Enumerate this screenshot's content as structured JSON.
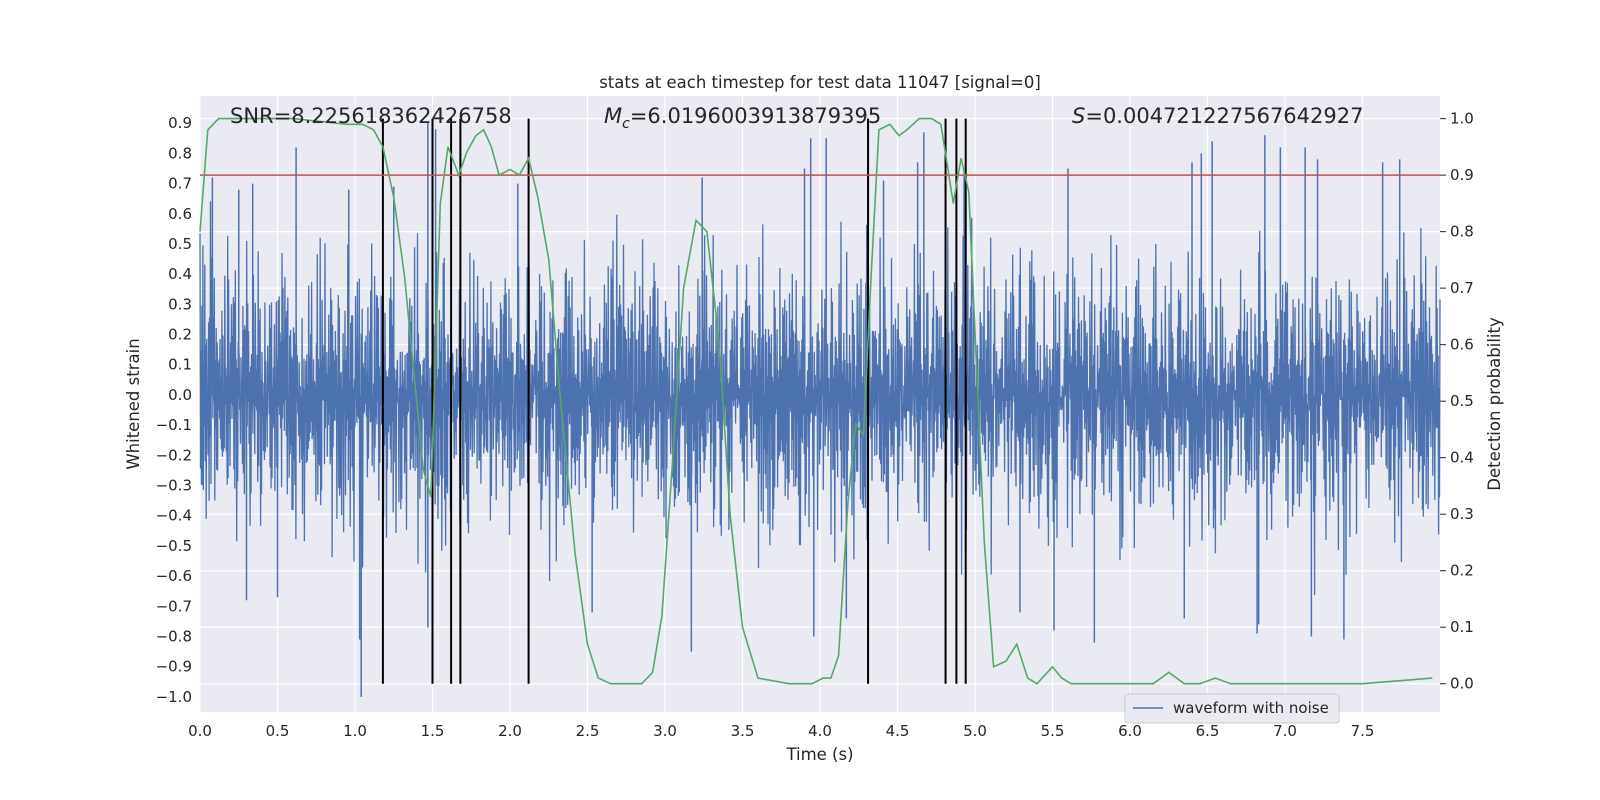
{
  "chart_data": {
    "type": "line",
    "title": "stats at each timestep for test data 11047 [signal=0]",
    "xlabel": "Time (s)",
    "ylabel": "Whitened strain",
    "y2label": "Detection probability",
    "xlim": [
      0,
      8
    ],
    "ylim": [
      -1.05,
      0.99
    ],
    "y2lim": [
      -0.05,
      1.04
    ],
    "x_ticks": [
      0.0,
      0.5,
      1.0,
      1.5,
      2.0,
      2.5,
      3.0,
      3.5,
      4.0,
      4.5,
      5.0,
      5.5,
      6.0,
      6.5,
      7.0,
      7.5
    ],
    "x_tick_labels": [
      "0.0",
      "0.5",
      "1.0",
      "1.5",
      "2.0",
      "2.5",
      "3.0",
      "3.5",
      "4.0",
      "4.5",
      "5.0",
      "5.5",
      "6.0",
      "6.5",
      "7.0",
      "7.5"
    ],
    "y_ticks": [
      0.9,
      0.8,
      0.7,
      0.6,
      0.5,
      0.4,
      0.3,
      0.2,
      0.1,
      0.0,
      -0.1,
      -0.2,
      -0.3,
      -0.4,
      -0.5,
      -0.6,
      -0.7,
      -0.8,
      -0.9,
      -1.0
    ],
    "y_tick_labels": [
      "0.9",
      "0.8",
      "0.7",
      "0.6",
      "0.5",
      "0.4",
      "0.3",
      "0.2",
      "0.1",
      "0.0",
      "−0.1",
      "−0.2",
      "−0.3",
      "−0.4",
      "−0.5",
      "−0.6",
      "−0.7",
      "−0.8",
      "−0.9",
      "−1.0"
    ],
    "y2_ticks": [
      1.0,
      0.9,
      0.8,
      0.7,
      0.6,
      0.5,
      0.4,
      0.3,
      0.2,
      0.1,
      0.0
    ],
    "y2_tick_labels": [
      "1.0",
      "0.9",
      "0.8",
      "0.7",
      "0.6",
      "0.5",
      "0.4",
      "0.3",
      "0.2",
      "0.1",
      "0.0"
    ],
    "annotations": {
      "snr": "SNR=8.225618362426758",
      "mc_symbol": "M",
      "mc_sub": "c",
      "mc_value": "=6.0196003913879395",
      "s_symbol": "S",
      "s_value": "=0.004721227567642927"
    },
    "threshold": {
      "value": 0.9,
      "axis": "y2",
      "color": "#c44e52"
    },
    "vlines": [
      1.18,
      1.5,
      1.62,
      1.68,
      2.12,
      4.31,
      4.81,
      4.88,
      4.94
    ],
    "series": [
      {
        "name": "waveform with noise",
        "axis": "y",
        "color": "#4c72b0",
        "envelope_note": "dense whitened-strain noise, approx symmetric about 0, core amplitude ~0.35 with spikes",
        "spikes": [
          {
            "x": 0.08,
            "y": 0.72
          },
          {
            "x": 0.25,
            "y": 0.68
          },
          {
            "x": 0.34,
            "y": 0.7
          },
          {
            "x": 0.62,
            "y": 0.82
          },
          {
            "x": 0.96,
            "y": 0.68
          },
          {
            "x": 1.25,
            "y": 0.69
          },
          {
            "x": 1.47,
            "y": 0.9
          },
          {
            "x": 1.52,
            "y": 0.88
          },
          {
            "x": 2.05,
            "y": 0.7
          },
          {
            "x": 3.24,
            "y": 0.72
          },
          {
            "x": 3.9,
            "y": 0.75
          },
          {
            "x": 3.94,
            "y": 0.85
          },
          {
            "x": 4.04,
            "y": 0.85
          },
          {
            "x": 4.41,
            "y": 0.71
          },
          {
            "x": 4.63,
            "y": 0.77
          },
          {
            "x": 4.67,
            "y": 0.87
          },
          {
            "x": 4.93,
            "y": 0.74
          },
          {
            "x": 5.6,
            "y": 0.75
          },
          {
            "x": 6.4,
            "y": 0.77
          },
          {
            "x": 6.46,
            "y": 0.8
          },
          {
            "x": 6.53,
            "y": 0.84
          },
          {
            "x": 6.87,
            "y": 0.86
          },
          {
            "x": 6.97,
            "y": 0.82
          },
          {
            "x": 7.13,
            "y": 0.82
          },
          {
            "x": 7.21,
            "y": 0.78
          },
          {
            "x": 7.63,
            "y": 0.77
          },
          {
            "x": 7.74,
            "y": 0.78
          },
          {
            "x": 1.03,
            "y": -0.81
          },
          {
            "x": 1.04,
            "y": -1.0
          },
          {
            "x": 1.47,
            "y": -0.77
          },
          {
            "x": 3.17,
            "y": -0.85
          },
          {
            "x": 3.96,
            "y": -0.8
          },
          {
            "x": 4.17,
            "y": -0.74
          },
          {
            "x": 5.51,
            "y": -0.78
          },
          {
            "x": 5.77,
            "y": -0.82
          },
          {
            "x": 6.35,
            "y": -0.74
          },
          {
            "x": 6.82,
            "y": -0.79
          },
          {
            "x": 6.83,
            "y": -0.76
          },
          {
            "x": 7.17,
            "y": -0.8
          },
          {
            "x": 7.38,
            "y": -0.81
          },
          {
            "x": 0.3,
            "y": -0.68
          },
          {
            "x": 0.5,
            "y": -0.67
          },
          {
            "x": 2.53,
            "y": -0.72
          },
          {
            "x": 5.29,
            "y": -0.72
          }
        ]
      },
      {
        "name": "Detection probability",
        "axis": "y2",
        "color": "#55a868",
        "x": [
          0.0,
          0.05,
          0.12,
          0.2,
          0.6,
          0.95,
          1.05,
          1.12,
          1.18,
          1.25,
          1.32,
          1.38,
          1.44,
          1.49,
          1.55,
          1.6,
          1.67,
          1.72,
          1.78,
          1.83,
          1.88,
          1.93,
          2.0,
          2.06,
          2.12,
          2.18,
          2.25,
          2.32,
          2.42,
          2.5,
          2.57,
          2.65,
          2.85,
          2.92,
          2.98,
          3.05,
          3.12,
          3.2,
          3.27,
          3.35,
          3.42,
          3.5,
          3.6,
          3.8,
          3.95,
          4.02,
          4.07,
          4.12,
          4.18,
          4.23,
          4.28,
          4.33,
          4.38,
          4.45,
          4.51,
          4.56,
          4.64,
          4.72,
          4.78,
          4.86,
          4.91,
          4.96,
          5.06,
          5.12,
          5.2,
          5.27,
          5.34,
          5.4,
          5.5,
          5.56,
          5.62,
          5.7,
          5.8,
          6.0,
          6.15,
          6.25,
          6.35,
          6.45,
          6.55,
          6.65,
          7.0,
          7.5,
          7.95
        ],
        "y": [
          0.8,
          0.98,
          1.0,
          1.0,
          1.0,
          0.99,
          0.99,
          0.98,
          0.95,
          0.86,
          0.72,
          0.55,
          0.38,
          0.33,
          0.85,
          0.95,
          0.9,
          0.94,
          0.97,
          0.98,
          0.95,
          0.9,
          0.91,
          0.9,
          0.93,
          0.86,
          0.75,
          0.52,
          0.23,
          0.07,
          0.01,
          0.0,
          0.0,
          0.02,
          0.12,
          0.4,
          0.7,
          0.82,
          0.8,
          0.6,
          0.3,
          0.1,
          0.01,
          0.0,
          0.0,
          0.01,
          0.01,
          0.05,
          0.32,
          0.46,
          0.44,
          0.72,
          0.98,
          0.99,
          0.97,
          0.98,
          1.0,
          1.0,
          0.99,
          0.85,
          0.93,
          0.87,
          0.25,
          0.03,
          0.04,
          0.07,
          0.01,
          0.0,
          0.03,
          0.01,
          0.0,
          0.0,
          0.0,
          0.0,
          0.0,
          0.02,
          0.0,
          0.0,
          0.01,
          0.0,
          0.0,
          0.0,
          0.01
        ]
      }
    ],
    "legend": {
      "placement": "lower-right",
      "entries": [
        "waveform with noise"
      ]
    },
    "grid": true
  }
}
